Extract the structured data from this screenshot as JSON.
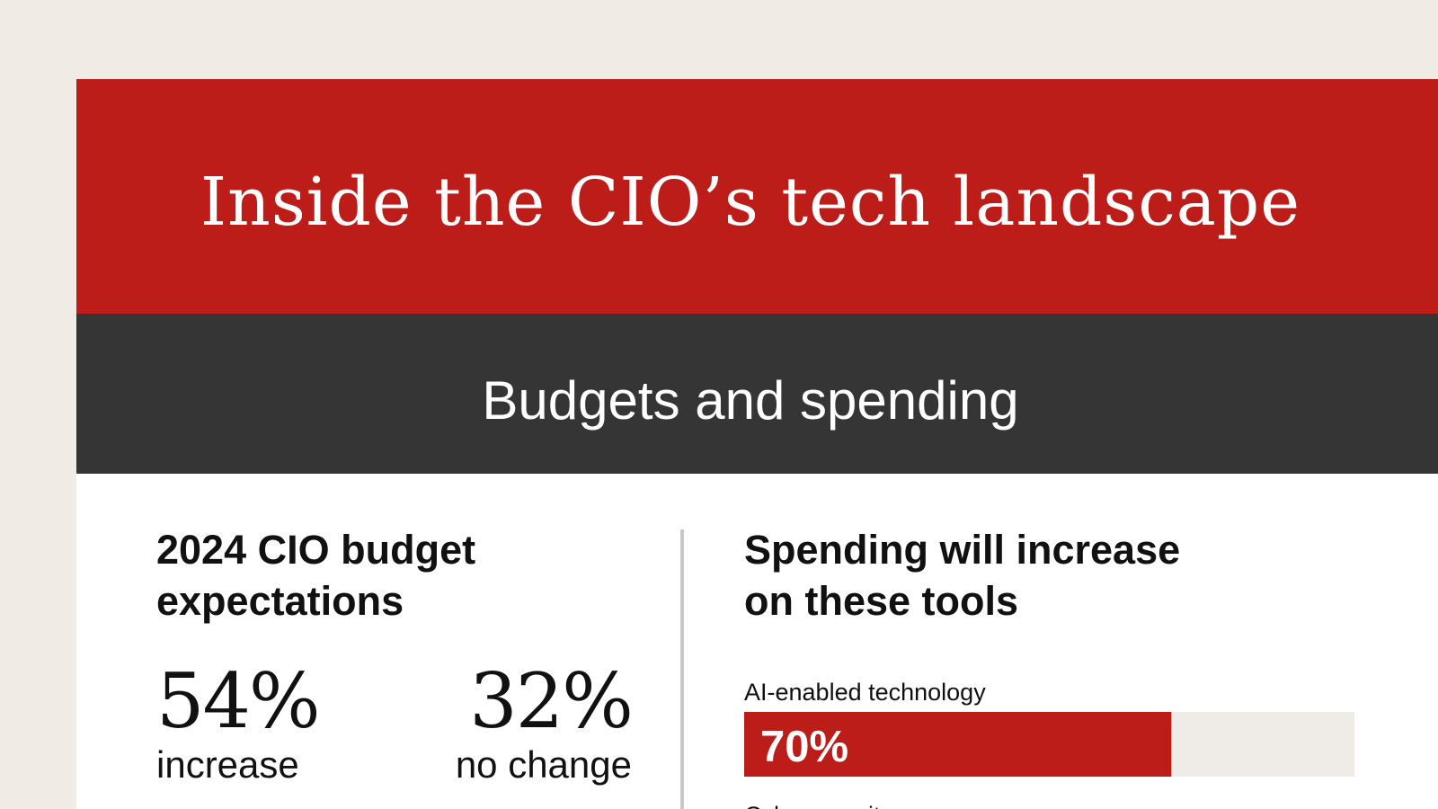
{
  "header": {
    "title": "Inside the CIO’s tech landscape"
  },
  "section": {
    "title": "Budgets and spending"
  },
  "budget": {
    "title_line1": "2024 CIO budget",
    "title_line2": "expectations",
    "stats": [
      {
        "value": "54%",
        "label": "increase"
      },
      {
        "value": "32%",
        "label": "no change"
      }
    ]
  },
  "spending": {
    "title_line1": "Spending will increase",
    "title_line2": "on these tools"
  },
  "colors": {
    "brand_red": "#bd1d19",
    "section_dark": "#353535",
    "track": "#efebe6",
    "background": "#f0ebe5"
  },
  "chart_data": {
    "type": "bar",
    "orientation": "horizontal",
    "categories": [
      "AI-enabled technology",
      "Cybersecurity"
    ],
    "values": [
      70,
      null
    ],
    "value_labels": [
      "70%",
      ""
    ],
    "xlim": [
      0,
      100
    ],
    "grid": false,
    "bar_color": "#bd1d19",
    "track_color": "#efebe6"
  }
}
